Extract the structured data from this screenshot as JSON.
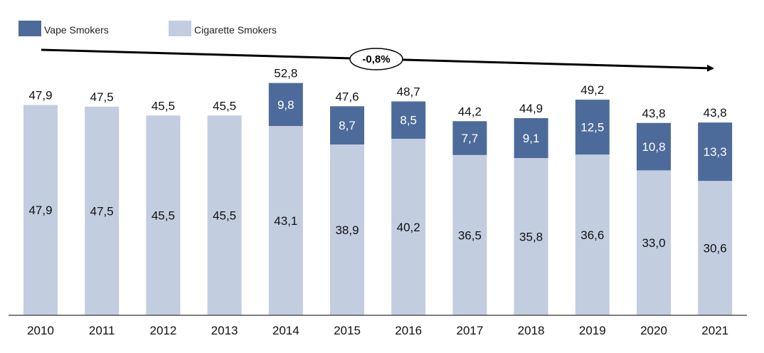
{
  "chart_data": {
    "type": "bar",
    "stacked": true,
    "categories": [
      "2010",
      "2011",
      "2012",
      "2013",
      "2014",
      "2015",
      "2016",
      "2017",
      "2018",
      "2019",
      "2020",
      "2021"
    ],
    "series": [
      {
        "name": "Cigarette Smokers",
        "color": "#c3cde0",
        "values": [
          47.9,
          47.5,
          45.5,
          45.5,
          43.1,
          38.9,
          40.2,
          36.5,
          35.8,
          36.6,
          33.0,
          30.6
        ],
        "labels": [
          "47,9",
          "47,5",
          "45,5",
          "45,5",
          "43,1",
          "38,9",
          "40,2",
          "36,5",
          "35,8",
          "36,6",
          "33,0",
          "30,6"
        ]
      },
      {
        "name": "Vape Smokers",
        "color": "#4d6b9a",
        "values": [
          null,
          null,
          null,
          null,
          9.8,
          8.7,
          8.5,
          7.7,
          9.1,
          12.5,
          10.8,
          13.3
        ],
        "labels": [
          "",
          "",
          "",
          "",
          "9,8",
          "8,7",
          "8,5",
          "7,7",
          "9,1",
          "12,5",
          "10,8",
          "13,3"
        ]
      }
    ],
    "totals": [
      47.9,
      47.5,
      45.5,
      45.5,
      52.8,
      47.6,
      48.7,
      44.2,
      44.9,
      49.2,
      43.8,
      43.8
    ],
    "total_labels": [
      "47,9",
      "47,5",
      "45,5",
      "45,5",
      "52,8",
      "47,6",
      "48,7",
      "44,2",
      "44,9",
      "49,2",
      "43,8",
      "43,8"
    ],
    "annotation": {
      "text": "-0,8%",
      "start_category": "2010",
      "end_category": "2021"
    },
    "ylim": [
      0,
      60
    ],
    "grid": false,
    "legend_position": "top-left",
    "title": "",
    "xlabel": "",
    "ylabel": ""
  }
}
